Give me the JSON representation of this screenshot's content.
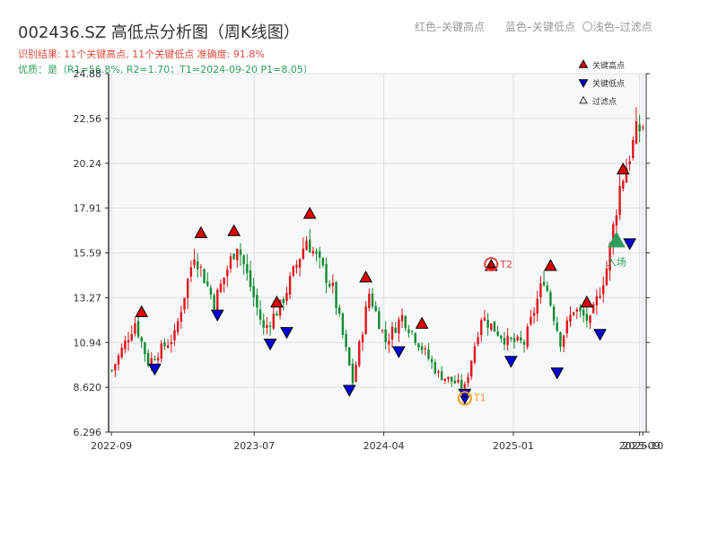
{
  "header": {
    "title": "002436.SZ 高低点分析图（周K线图）",
    "legend_red": "红色–关键高点",
    "legend_blue": "蓝色–关键低点",
    "legend_light": "〇浅色–过滤点",
    "result_line": "识别结果: 11个关键高点, 11个关键低点   准确度: 91.8%",
    "quality_line": "优质：是（R1=56.8%, R2=1.70；T1=2024-09-20 P1=8.05）"
  },
  "colors": {
    "up": "#e0141b",
    "down": "#0e8a2e",
    "high_marker": "#e00000",
    "low_marker": "#0000dd",
    "t1": "#f29b1d",
    "t2": "#e04040",
    "entry": "#2e9f5c",
    "result_text": "#e04a3c",
    "quality_text": "#2e9f5c",
    "plot_bg": "#f7f8fa"
  },
  "chart_data": {
    "type": "candlestick",
    "title": "002436.SZ 高低点分析图（周K线图）",
    "ylim": [
      6.296,
      24.88
    ],
    "yticks": [
      "6.296",
      "8.620",
      "10.94",
      "13.27",
      "15.59",
      "17.91",
      "20.24",
      "22.56",
      "24.88"
    ],
    "xlim": [
      "2022-08-26",
      "2025-10-10"
    ],
    "xticks": [
      {
        "date": "2022-09-01",
        "label": "2022-09"
      },
      {
        "date": "2023-07-01",
        "label": "2023-07"
      },
      {
        "date": "2024-04-01",
        "label": "2024-04"
      },
      {
        "date": "2025-01-01",
        "label": "2025-01"
      },
      {
        "date": "2025-09-26",
        "label": "2025-09"
      },
      {
        "date": "2025-10-03",
        "label": "2025-10"
      }
    ],
    "anchors": [
      {
        "date": "2022-09-02",
        "price": 9.5
      },
      {
        "date": "2022-10-21",
        "price": 12.0
      },
      {
        "date": "2022-11-18",
        "price": 9.9
      },
      {
        "date": "2023-01-13",
        "price": 11.3
      },
      {
        "date": "2023-02-24",
        "price": 15.6
      },
      {
        "date": "2023-04-07",
        "price": 13.0
      },
      {
        "date": "2023-05-26",
        "price": 16.1
      },
      {
        "date": "2023-07-21",
        "price": 11.6
      },
      {
        "date": "2023-08-25",
        "price": 12.8
      },
      {
        "date": "2023-10-20",
        "price": 16.3
      },
      {
        "date": "2023-12-15",
        "price": 13.7
      },
      {
        "date": "2024-01-26",
        "price": 8.9
      },
      {
        "date": "2024-03-01",
        "price": 13.5
      },
      {
        "date": "2024-04-05",
        "price": 11.0
      },
      {
        "date": "2024-05-10",
        "price": 12.3
      },
      {
        "date": "2024-07-26",
        "price": 9.3
      },
      {
        "date": "2024-09-20",
        "price": 8.6
      },
      {
        "date": "2024-10-25",
        "price": 12.3
      },
      {
        "date": "2024-12-20",
        "price": 11.0
      },
      {
        "date": "2025-01-24",
        "price": 10.9
      },
      {
        "date": "2025-03-07",
        "price": 14.3
      },
      {
        "date": "2025-04-11",
        "price": 11.0
      },
      {
        "date": "2025-05-09",
        "price": 12.7
      },
      {
        "date": "2025-06-13",
        "price": 12.0
      },
      {
        "date": "2025-07-18",
        "price": 14.8
      },
      {
        "date": "2025-08-15",
        "price": 19.0
      },
      {
        "date": "2025-09-19",
        "price": 21.8
      },
      {
        "date": "2025-10-03",
        "price": 22.2
      }
    ],
    "highs": [
      {
        "date": "2022-11-04",
        "price": 12.5
      },
      {
        "date": "2023-03-10",
        "price": 16.6
      },
      {
        "date": "2023-05-19",
        "price": 16.7
      },
      {
        "date": "2023-08-18",
        "price": 13.0
      },
      {
        "date": "2023-10-27",
        "price": 17.6
      },
      {
        "date": "2024-02-23",
        "price": 14.3
      },
      {
        "date": "2024-06-21",
        "price": 11.9
      },
      {
        "date": "2024-11-15",
        "price": 14.9
      },
      {
        "date": "2025-03-21",
        "price": 14.9
      },
      {
        "date": "2025-06-06",
        "price": 13.0
      },
      {
        "date": "2025-08-22",
        "price": 19.9
      }
    ],
    "lows": [
      {
        "date": "2022-12-02",
        "price": 9.6
      },
      {
        "date": "2023-04-14",
        "price": 12.4
      },
      {
        "date": "2023-08-04",
        "price": 10.9
      },
      {
        "date": "2023-09-08",
        "price": 11.5
      },
      {
        "date": "2024-01-19",
        "price": 8.5
      },
      {
        "date": "2024-05-03",
        "price": 10.5
      },
      {
        "date": "2024-09-20",
        "price": 8.3
      },
      {
        "date": "2024-12-27",
        "price": 10.0
      },
      {
        "date": "2025-04-04",
        "price": 9.4
      },
      {
        "date": "2025-07-04",
        "price": 11.4
      },
      {
        "date": "2025-09-05",
        "price": 16.1
      }
    ],
    "annotations": {
      "t1": {
        "label": "T1",
        "date": "2024-09-20",
        "price": 8.05
      },
      "t2": {
        "label": "T2",
        "date": "2024-11-15",
        "price": 15.0
      },
      "entry": {
        "label": "入场",
        "date": "2025-08-08",
        "price": 16.2
      }
    },
    "legend": [
      {
        "label": "关键高点",
        "marker": "triangle-up",
        "color": "#e00000"
      },
      {
        "label": "关键低点",
        "marker": "triangle-down",
        "color": "#0000dd"
      },
      {
        "label": "过滤点",
        "marker": "triangle-up-hollow",
        "color": "#888888"
      }
    ],
    "legend_position": "top-right",
    "grid": true
  }
}
